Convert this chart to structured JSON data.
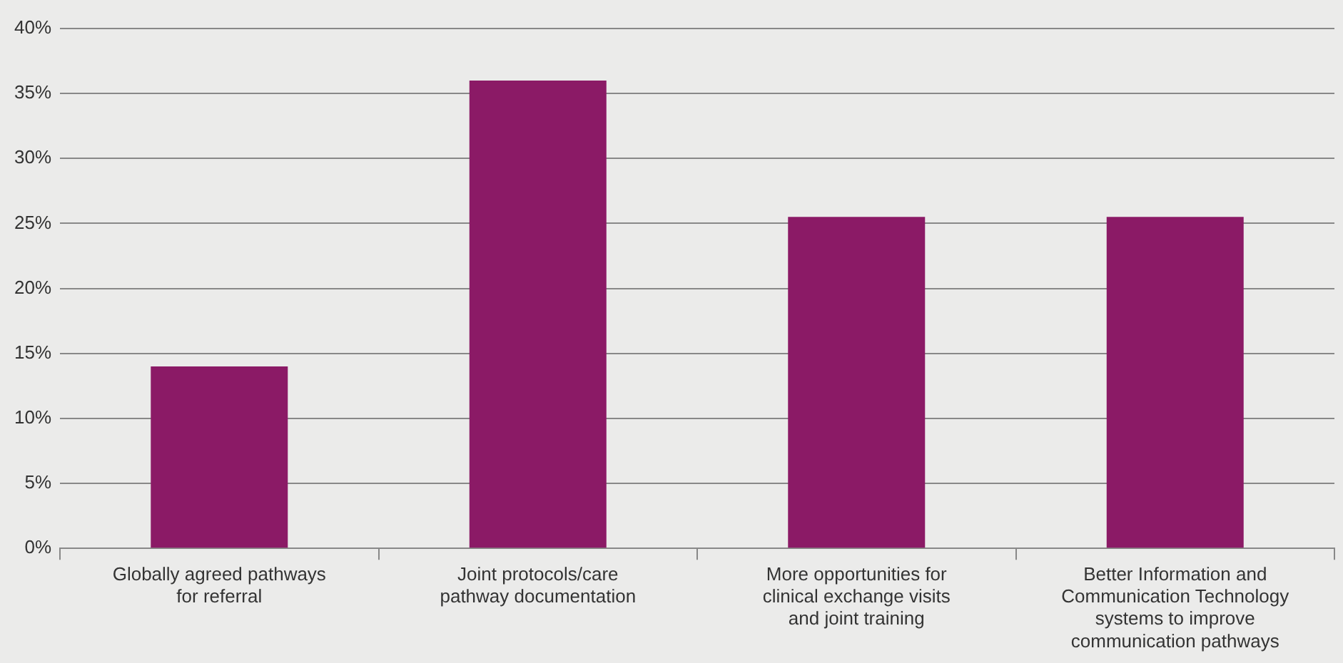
{
  "chart_data": {
    "type": "bar",
    "categories": [
      "Globally agreed pathways for referral",
      "Joint protocols/care pathway documentation",
      "More opportunities for clinical exchange visits and joint training",
      "Better Information and Communication Technology systems to improve communication pathways"
    ],
    "values": [
      14,
      36,
      25.5,
      25.5
    ],
    "color": "#8b1a66",
    "ylim": [
      0,
      40
    ],
    "yticks": [
      {
        "value": 0,
        "label": "0%"
      },
      {
        "value": 5,
        "label": "5%"
      },
      {
        "value": 10,
        "label": "10%"
      },
      {
        "value": 15,
        "label": "15%"
      },
      {
        "value": 20,
        "label": "20%"
      },
      {
        "value": 25,
        "label": "25%"
      },
      {
        "value": 30,
        "label": "30%"
      },
      {
        "value": 35,
        "label": "35%"
      },
      {
        "value": 40,
        "label": "40%"
      }
    ],
    "grid": "y",
    "legend": false
  }
}
